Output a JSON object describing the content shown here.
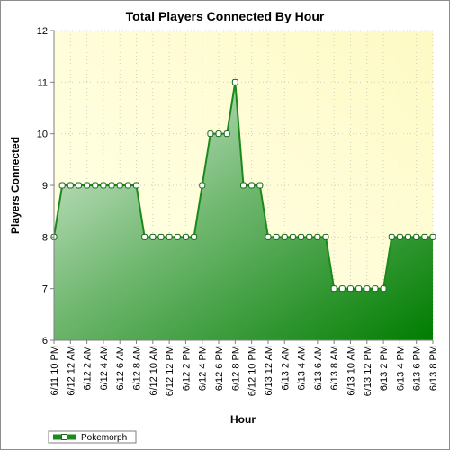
{
  "chart_data": {
    "type": "area",
    "title": "Total Players Connected By Hour",
    "xlabel": "Hour",
    "ylabel": "Players Connected",
    "ylim": [
      6,
      12
    ],
    "yticks": [
      "6",
      "7",
      "8",
      "9",
      "10",
      "11",
      "12"
    ],
    "grid": true,
    "legend_position": "bottom-left",
    "categories": [
      "6/11 10 PM",
      "6/11 11 PM",
      "6/12 12 AM",
      "6/12 1 AM",
      "6/12 2 AM",
      "6/12 3 AM",
      "6/12 4 AM",
      "6/12 5 AM",
      "6/12 6 AM",
      "6/12 7 AM",
      "6/12 8 AM",
      "6/12 9 AM",
      "6/12 10 AM",
      "6/12 11 AM",
      "6/12 12 PM",
      "6/12 1 PM",
      "6/12 2 PM",
      "6/12 3 PM",
      "6/12 4 PM",
      "6/12 5 PM",
      "6/12 6 PM",
      "6/12 7 PM",
      "6/12 8 PM",
      "6/12 9 PM",
      "6/12 10 PM",
      "6/12 11 PM",
      "6/13 12 AM",
      "6/13 1 AM",
      "6/13 2 AM",
      "6/13 3 AM",
      "6/13 4 AM",
      "6/13 5 AM",
      "6/13 6 AM",
      "6/13 7 AM",
      "6/13 8 AM",
      "6/13 9 AM",
      "6/13 10 AM",
      "6/13 11 AM",
      "6/13 12 PM",
      "6/13 1 PM",
      "6/13 2 PM",
      "6/13 3 PM",
      "6/13 4 PM",
      "6/13 5 PM",
      "6/13 6 PM",
      "6/13 7 PM",
      "6/13 8 PM"
    ],
    "tick_labels": [
      "6/11 10 PM",
      "6/12 12 AM",
      "6/12 2 AM",
      "6/12 4 AM",
      "6/12 6 AM",
      "6/12 8 AM",
      "6/12 10 AM",
      "6/12 12 PM",
      "6/12 2 PM",
      "6/12 4 PM",
      "6/12 6 PM",
      "6/12 8 PM",
      "6/12 10 PM",
      "6/13 12 AM",
      "6/13 2 AM",
      "6/13 4 AM",
      "6/13 6 AM",
      "6/13 8 AM",
      "6/13 10 AM",
      "6/13 12 PM",
      "6/13 2 PM",
      "6/13 4 PM",
      "6/13 6 PM",
      "6/13 8 PM"
    ],
    "series": [
      {
        "name": "Pokemorph",
        "color": "#1a8a1a",
        "values": [
          8,
          9,
          9,
          9,
          9,
          9,
          9,
          9,
          9,
          9,
          9,
          8,
          8,
          8,
          8,
          8,
          8,
          8,
          9,
          10,
          10,
          10,
          11,
          9,
          9,
          9,
          8,
          8,
          8,
          8,
          8,
          8,
          8,
          8,
          7,
          7,
          7,
          7,
          7,
          7,
          7,
          8,
          8,
          8,
          8,
          8,
          8
        ]
      }
    ]
  }
}
